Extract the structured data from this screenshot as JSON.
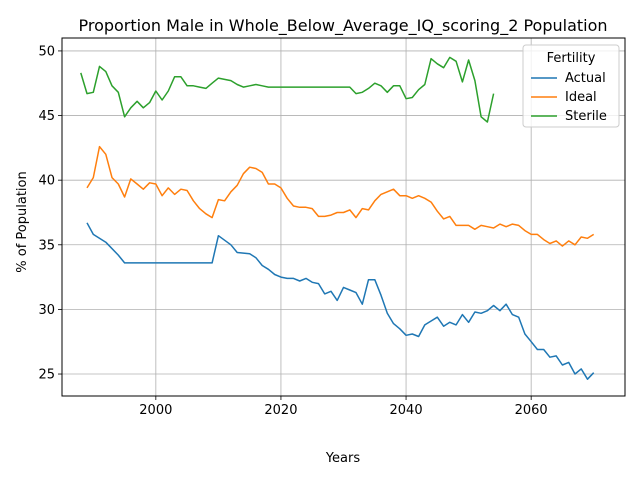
{
  "chart_data": {
    "type": "line",
    "title": "Proportion Male in Whole_Below_Average_IQ_scoring_2 Population",
    "xlabel": "Years",
    "ylabel": "% of Population",
    "xlim": [
      1985,
      2075
    ],
    "ylim": [
      23.3,
      51.0
    ],
    "xticks": [
      2000,
      2020,
      2040,
      2060
    ],
    "yticks": [
      25,
      30,
      35,
      40,
      45,
      50
    ],
    "grid": true,
    "legend": {
      "title": "Fertility",
      "position": "top-right"
    },
    "series": [
      {
        "name": "Actual",
        "color": "#1f77b4",
        "x": [
          1989,
          1990,
          1992,
          1994,
          1995,
          1997,
          2000,
          2009,
          2010,
          2012,
          2013,
          2015,
          2016,
          2017,
          2018,
          2019,
          2020,
          2021,
          2022,
          2023,
          2024,
          2025,
          2026,
          2027,
          2028,
          2029,
          2030,
          2031,
          2032,
          2033,
          2034,
          2035,
          2036,
          2037,
          2038,
          2039,
          2040,
          2041,
          2042,
          2043,
          2044,
          2045,
          2046,
          2047,
          2048,
          2049,
          2050,
          2051,
          2052,
          2053,
          2054,
          2055,
          2056,
          2057,
          2058,
          2059,
          2060,
          2061,
          2062,
          2063,
          2064,
          2065,
          2066,
          2067,
          2068,
          2069,
          2070
        ],
        "values": [
          36.7,
          35.8,
          35.2,
          34.2,
          33.6,
          33.6,
          33.6,
          33.6,
          35.7,
          35.0,
          34.4,
          34.3,
          34.0,
          33.4,
          33.1,
          32.7,
          32.5,
          32.4,
          32.4,
          32.2,
          32.4,
          32.1,
          32.0,
          31.2,
          31.4,
          30.7,
          31.7,
          31.5,
          31.3,
          30.4,
          32.3,
          32.3,
          31.1,
          29.7,
          28.9,
          28.5,
          28.0,
          28.1,
          27.9,
          28.8,
          29.1,
          29.4,
          28.7,
          29.0,
          28.8,
          29.6,
          29.0,
          29.8,
          29.7,
          29.9,
          30.3,
          29.9,
          30.4,
          29.6,
          29.4,
          28.1,
          27.5,
          26.9,
          26.9,
          26.3,
          26.4,
          25.7,
          25.9,
          25.0,
          25.4,
          24.6,
          25.1
        ]
      },
      {
        "name": "Ideal",
        "color": "#ff7f0e",
        "x": [
          1989,
          1990,
          1991,
          1992,
          1993,
          1994,
          1995,
          1996,
          1997,
          1998,
          1999,
          2000,
          2001,
          2002,
          2003,
          2004,
          2005,
          2006,
          2007,
          2008,
          2009,
          2010,
          2011,
          2012,
          2013,
          2014,
          2015,
          2016,
          2017,
          2018,
          2019,
          2020,
          2021,
          2022,
          2023,
          2024,
          2025,
          2026,
          2027,
          2028,
          2029,
          2030,
          2031,
          2032,
          2033,
          2034,
          2035,
          2036,
          2037,
          2038,
          2039,
          2040,
          2041,
          2042,
          2043,
          2044,
          2045,
          2046,
          2047,
          2048,
          2049,
          2050,
          2051,
          2052,
          2053,
          2054,
          2055,
          2056,
          2057,
          2058,
          2059,
          2060,
          2061,
          2062,
          2063,
          2064,
          2065,
          2066,
          2067,
          2068,
          2069,
          2070
        ],
        "values": [
          39.4,
          40.2,
          42.6,
          42.0,
          40.2,
          39.7,
          38.7,
          40.1,
          39.7,
          39.3,
          39.8,
          39.7,
          38.8,
          39.4,
          38.9,
          39.3,
          39.2,
          38.4,
          37.8,
          37.4,
          37.1,
          38.5,
          38.4,
          39.1,
          39.6,
          40.5,
          41.0,
          40.9,
          40.6,
          39.7,
          39.7,
          39.4,
          38.6,
          38.0,
          37.9,
          37.9,
          37.8,
          37.2,
          37.2,
          37.3,
          37.5,
          37.5,
          37.7,
          37.1,
          37.8,
          37.7,
          38.4,
          38.9,
          39.1,
          39.3,
          38.8,
          38.8,
          38.6,
          38.8,
          38.6,
          38.3,
          37.6,
          37.0,
          37.2,
          36.5,
          36.5,
          36.5,
          36.2,
          36.5,
          36.4,
          36.3,
          36.6,
          36.4,
          36.6,
          36.5,
          36.1,
          35.8,
          35.8,
          35.4,
          35.1,
          35.3,
          34.9,
          35.3,
          35.0,
          35.6,
          35.5,
          35.8
        ]
      },
      {
        "name": "Sterile",
        "color": "#2ca02c",
        "x": [
          1988,
          1989,
          1990,
          1991,
          1992,
          1993,
          1994,
          1995,
          1996,
          1997,
          1998,
          1999,
          2000,
          2001,
          2002,
          2003,
          2004,
          2005,
          2006,
          2007,
          2008,
          2009,
          2010,
          2011,
          2012,
          2013,
          2014,
          2015,
          2016,
          2017,
          2018,
          2019,
          2020,
          2025,
          2030,
          2031,
          2032,
          2033,
          2034,
          2035,
          2036,
          2037,
          2038,
          2039,
          2040,
          2041,
          2042,
          2043,
          2044,
          2045,
          2046,
          2047,
          2048,
          2049,
          2050,
          2051,
          2052,
          2053,
          2054
        ],
        "values": [
          48.3,
          46.7,
          46.8,
          48.8,
          48.4,
          47.3,
          46.8,
          44.9,
          45.6,
          46.1,
          45.6,
          46.0,
          46.9,
          46.2,
          46.9,
          48.0,
          48.0,
          47.3,
          47.3,
          47.2,
          47.1,
          47.5,
          47.9,
          47.8,
          47.7,
          47.4,
          47.2,
          47.3,
          47.4,
          47.3,
          47.2,
          47.2,
          47.2,
          47.2,
          47.2,
          47.2,
          46.7,
          46.8,
          47.1,
          47.5,
          47.3,
          46.8,
          47.3,
          47.3,
          46.3,
          46.4,
          47.0,
          47.4,
          49.4,
          49.0,
          48.7,
          49.5,
          49.2,
          47.6,
          49.3,
          47.7,
          44.9,
          44.5,
          46.7
        ]
      }
    ]
  }
}
